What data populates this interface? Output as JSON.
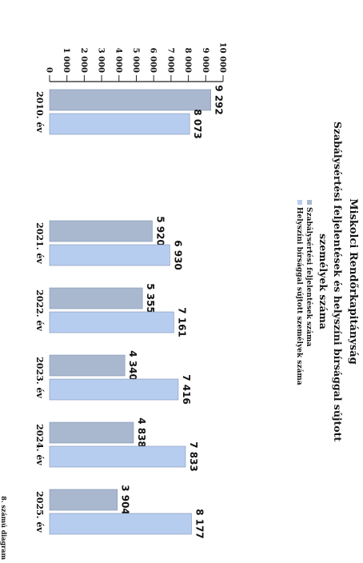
{
  "chart_data": {
    "type": "bar",
    "orientation": "horizontal",
    "header": "Miskolci Rendőrkapitányság",
    "title": "Szabálysértési feljelentések és helyszíni bírsággal sújtott személyek száma",
    "categories": [
      "2010. év",
      "2021. év",
      "2022. év",
      "2023. év",
      "2024. év",
      "2025. év"
    ],
    "series": [
      {
        "name": "Szabálysértési feljelentések száma",
        "values": [
          9292,
          5920,
          5355,
          4340,
          4838,
          3904
        ],
        "labels": [
          "9 292",
          "5 920",
          "5 355",
          "4 340",
          "4 838",
          "3 904"
        ]
      },
      {
        "name": "Helyszíni bírsággal sújtott személyek száma",
        "values": [
          8073,
          6930,
          7161,
          7416,
          7833,
          8177
        ],
        "labels": [
          "8 073",
          "6 930",
          "7 161",
          "7 416",
          "7 833",
          "8 177"
        ]
      }
    ],
    "axis_ticks": [
      "0",
      "1 000",
      "2 000",
      "3 000",
      "4 000",
      "5 000",
      "6 000",
      "7 000",
      "8 000",
      "9 000",
      "10 000"
    ],
    "xlim": [
      0,
      10000
    ],
    "legend_position": "top",
    "grid": false,
    "footer": "8. számú diagram",
    "colors": {
      "series1": "#a9b8cf",
      "series2": "#b7cdf0",
      "axis": "#222222",
      "text": "#111111"
    }
  }
}
